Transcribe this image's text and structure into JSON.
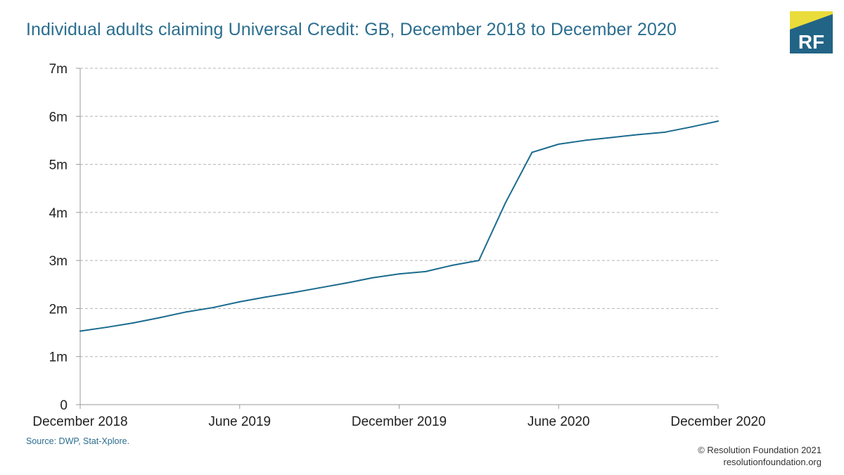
{
  "colors": {
    "title": "#2b6e8f",
    "line": "#1a6b8e",
    "grid": "#b5b5b5",
    "logo_bg": "#226486",
    "logo_accent": "#eadc3a",
    "logo_text": "#ffffff"
  },
  "logo": {
    "text": "RF"
  },
  "source": "Source: DWP, Stat-Xplore.",
  "footer": {
    "copyright": "© Resolution Foundation 2021",
    "website": "resolutionfoundation.org"
  },
  "chart_data": {
    "type": "line",
    "title": "Individual adults claiming Universal Credit: GB, December 2018 to December 2020",
    "xlabel": "",
    "ylabel": "",
    "grid": true,
    "legend": "none",
    "ylim": [
      0,
      7
    ],
    "x_range": [
      0,
      24
    ],
    "y_ticks": [
      {
        "value": 0,
        "label": "0"
      },
      {
        "value": 1,
        "label": "1m"
      },
      {
        "value": 2,
        "label": "2m"
      },
      {
        "value": 3,
        "label": "3m"
      },
      {
        "value": 4,
        "label": "4m"
      },
      {
        "value": 5,
        "label": "5m"
      },
      {
        "value": 6,
        "label": "6m"
      },
      {
        "value": 7,
        "label": "7m"
      }
    ],
    "x_ticks": [
      {
        "value": 0,
        "label": "December 2018"
      },
      {
        "value": 6,
        "label": "June 2019"
      },
      {
        "value": 12,
        "label": "December 2019"
      },
      {
        "value": 18,
        "label": "June 2020"
      },
      {
        "value": 24,
        "label": "December 2020"
      }
    ],
    "series": [
      {
        "name": "Individual adults claiming Universal Credit",
        "x": [
          0,
          1,
          2,
          3,
          4,
          5,
          6,
          7,
          8,
          9,
          10,
          11,
          12,
          13,
          14,
          15,
          16,
          17,
          18,
          19,
          20,
          21,
          22,
          23,
          24
        ],
        "values": [
          1.53,
          1.61,
          1.7,
          1.81,
          1.93,
          2.02,
          2.14,
          2.24,
          2.33,
          2.43,
          2.53,
          2.64,
          2.72,
          2.77,
          2.9,
          3.0,
          4.2,
          5.25,
          5.42,
          5.5,
          5.56,
          5.62,
          5.67,
          5.78,
          5.9
        ]
      }
    ]
  }
}
